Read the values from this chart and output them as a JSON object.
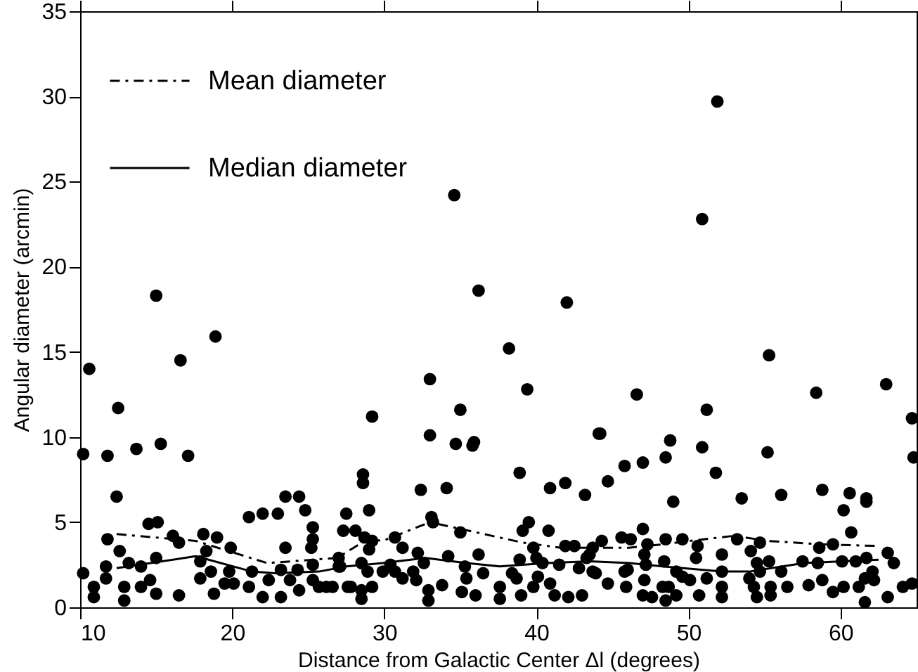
{
  "chart_data": {
    "type": "scatter",
    "xlabel": "Distance from Galactic Center Δl (degrees)",
    "ylabel": "Angular diameter (arcmin)",
    "xlim": [
      10,
      65
    ],
    "xticks": [
      10,
      20,
      30,
      40,
      50,
      60
    ],
    "ylim": [
      0,
      35
    ],
    "yticks": [
      0,
      5,
      10,
      15,
      20,
      25,
      30,
      35
    ],
    "legend": "top left",
    "series": [
      {
        "marker": "circle",
        "color": "#000000",
        "x": [
          10.6,
          12.5,
          15.0,
          16.6,
          18.9,
          29.2,
          33.0,
          34.6,
          36.2,
          35.0,
          33.0,
          38.2,
          39.4,
          42.0,
          46.6,
          44.1,
          50.9,
          51.9,
          51.2,
          55.3,
          58.4,
          63.0,
          64.7,
          64.8,
          10.2,
          11.8,
          13.7,
          15.3,
          17.1,
          12.4,
          11.8,
          10.2,
          10.9,
          10.9,
          11.7,
          11.7,
          12.6,
          12.9,
          12.9,
          13.2,
          14.0,
          14.0,
          14.6,
          15.0,
          15.0,
          14.5,
          15.1,
          16.1,
          16.5,
          16.5,
          17.9,
          18.1,
          18.3,
          19.0,
          17.9,
          18.6,
          18.8,
          19.5,
          19.8,
          19.9,
          20.1,
          21.1,
          22.0,
          21.1,
          21.3,
          22.0,
          22.4,
          23.0,
          23.5,
          24.4,
          24.8,
          23.5,
          23.2,
          23.2,
          23.8,
          24.3,
          24.4,
          25.3,
          25.3,
          25.2,
          25.3,
          25.3,
          25.7,
          26.2,
          26.6,
          27.0,
          27.3,
          27.5,
          27.0,
          27.6,
          34.7,
          35.8,
          35.9,
          28.6,
          28.6,
          32.4,
          34.1,
          38.9,
          40.9,
          41.9,
          43.2,
          44.2,
          44.7,
          45.8,
          29.0,
          28.1,
          28.7,
          29.2,
          29.0,
          30.7,
          31.2,
          33.1,
          33.2,
          35.0,
          32.2,
          34.2,
          36.2,
          39.5,
          39.1,
          40.8,
          39.8,
          41.9,
          42.5,
          43.7,
          44.3,
          45.6,
          27.1,
          28.5,
          28.9,
          27.8,
          28.5,
          29.2,
          28.5,
          29.9,
          30.4,
          30.7,
          31.2,
          31.9,
          32.1,
          32.6,
          32.9,
          32.9,
          33.8,
          35.3,
          35.4,
          35.1,
          36.0,
          36.5,
          37.6,
          37.6,
          38.4,
          38.7,
          39.0,
          38.9,
          39.8,
          40.1,
          40.0,
          40.4,
          40.9,
          41.2,
          41.5,
          42.1,
          42.8,
          43.0,
          43.3,
          43.5,
          43.7,
          43.9,
          44.7,
          45.8,
          45.9,
          48.8,
          50.9,
          55.2,
          47.0,
          48.5,
          51.8,
          49.0,
          53.5,
          56.1,
          58.8,
          60.6,
          60.2,
          61.7,
          61.7,
          60.7,
          47.0,
          46.2,
          47.3,
          47.1,
          48.5,
          49.6,
          50.6,
          50.5,
          52.2,
          53.2,
          54.1,
          54.7,
          58.6,
          59.5,
          63.1,
          63.5,
          46.0,
          47.2,
          48.4,
          47.1,
          47.0,
          47.6,
          48.3,
          48.7,
          48.5,
          49.2,
          49.2,
          49.6,
          50.1,
          50.7,
          51.2,
          52.2,
          52.2,
          52.2,
          54.0,
          54.5,
          54.7,
          54.3,
          54.5,
          55.3,
          55.4,
          56.1,
          56.5,
          55.4,
          57.5,
          57.9,
          58.5,
          58.8,
          59.5,
          60.1,
          60.2,
          61.0,
          61.7,
          61.2,
          61.6,
          62.1,
          62.2,
          61.6,
          63.1,
          64.1,
          64.7
        ],
        "values": [
          14.0,
          11.7,
          18.3,
          14.5,
          15.9,
          11.2,
          13.4,
          24.2,
          18.6,
          11.6,
          10.1,
          15.2,
          12.8,
          17.9,
          12.5,
          10.2,
          22.8,
          29.7,
          11.6,
          14.8,
          12.6,
          13.1,
          11.1,
          8.8,
          9.0,
          8.9,
          9.3,
          9.6,
          8.9,
          6.5,
          4.0,
          2.0,
          1.2,
          0.6,
          1.7,
          2.4,
          3.3,
          1.2,
          0.4,
          2.6,
          2.4,
          1.2,
          1.6,
          2.9,
          0.8,
          4.9,
          5.0,
          4.2,
          3.8,
          0.7,
          2.7,
          4.3,
          3.3,
          4.1,
          1.7,
          2.1,
          0.8,
          1.4,
          2.1,
          3.5,
          1.4,
          5.3,
          5.5,
          1.2,
          2.1,
          0.6,
          1.6,
          5.5,
          6.5,
          6.5,
          5.7,
          3.5,
          2.2,
          0.6,
          1.6,
          2.2,
          1.0,
          4.7,
          4.0,
          3.5,
          2.5,
          1.6,
          1.2,
          1.2,
          1.2,
          2.9,
          4.5,
          5.5,
          2.4,
          1.2,
          9.6,
          9.5,
          9.7,
          7.8,
          7.3,
          6.9,
          7.0,
          7.9,
          7.0,
          7.3,
          6.6,
          10.2,
          7.4,
          8.3,
          5.7,
          4.5,
          4.1,
          3.9,
          3.4,
          4.1,
          3.5,
          5.3,
          5.0,
          4.4,
          3.2,
          3.0,
          3.1,
          5.0,
          4.5,
          4.5,
          3.5,
          3.6,
          3.6,
          3.5,
          3.9,
          4.1,
          2.4,
          2.6,
          2.1,
          1.2,
          1.0,
          1.2,
          0.5,
          2.1,
          2.5,
          2.1,
          1.7,
          2.1,
          1.6,
          2.6,
          1.0,
          0.4,
          1.3,
          2.4,
          1.7,
          0.9,
          0.7,
          2.0,
          1.2,
          0.5,
          2.0,
          1.7,
          0.7,
          2.8,
          1.2,
          1.8,
          2.9,
          2.6,
          1.4,
          0.7,
          2.5,
          0.6,
          2.3,
          0.7,
          2.9,
          3.1,
          2.1,
          2.0,
          1.4,
          2.1,
          1.2,
          9.8,
          9.4,
          9.1,
          8.5,
          8.8,
          7.9,
          6.2,
          6.4,
          6.6,
          6.9,
          6.7,
          5.7,
          6.4,
          6.2,
          4.4,
          4.6,
          4.0,
          3.7,
          3.1,
          4.0,
          4.0,
          3.6,
          2.9,
          3.1,
          4.0,
          3.3,
          3.8,
          3.5,
          3.7,
          3.2,
          2.6,
          2.2,
          2.5,
          2.7,
          1.6,
          0.7,
          0.6,
          1.2,
          1.2,
          0.4,
          2.1,
          0.7,
          1.8,
          1.6,
          0.7,
          1.7,
          2.1,
          1.2,
          0.6,
          1.7,
          2.6,
          2.1,
          1.2,
          0.6,
          2.7,
          1.2,
          2.1,
          1.2,
          0.7,
          2.7,
          1.3,
          2.6,
          1.6,
          0.9,
          2.7,
          1.2,
          2.7,
          2.9,
          1.2,
          1.7,
          2.1,
          1.6,
          0.3,
          0.6,
          1.2,
          1.4
        ]
      },
      {
        "type": "line",
        "name": "Mean diameter",
        "color": "#000000",
        "line_style": "dashed",
        "x": [
          12.4,
          17.6,
          22.3,
          26.9,
          28.9,
          29.9,
          33.0,
          39.1,
          41.6,
          44.4,
          46.1,
          48.3,
          50.1,
          53.0,
          55.2,
          58.8,
          62.5
        ],
        "values": [
          4.3,
          3.9,
          2.6,
          2.9,
          4.0,
          3.9,
          5.0,
          3.8,
          3.5,
          3.5,
          3.5,
          3.7,
          3.9,
          4.2,
          3.9,
          3.7,
          3.6
        ]
      },
      {
        "type": "line",
        "name": "Median diameter",
        "color": "#000000",
        "line_style": "solid",
        "x": [
          12.4,
          17.6,
          21.3,
          22.8,
          25.7,
          27.5,
          29.9,
          32.7,
          35.4,
          37.6,
          40.7,
          43.5,
          46.1,
          48.3,
          52.2,
          54.0,
          57.6,
          62.5
        ],
        "values": [
          2.3,
          3.0,
          2.1,
          2.0,
          2.1,
          2.4,
          2.6,
          2.9,
          2.6,
          2.4,
          2.6,
          2.7,
          2.6,
          2.4,
          2.1,
          2.1,
          2.6,
          2.8
        ]
      }
    ]
  }
}
